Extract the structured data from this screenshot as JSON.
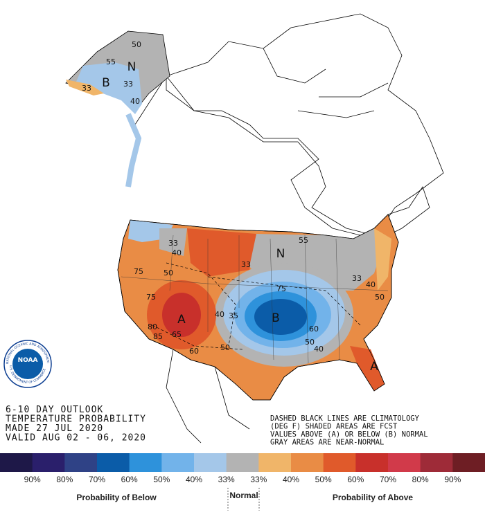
{
  "outlook": {
    "lines": [
      "6-10 DAY OUTLOOK",
      "TEMPERATURE PROBABILITY",
      "MADE   27 JUL 2020",
      "VALID  AUG 02 - 06, 2020"
    ]
  },
  "note": {
    "lines": [
      "DASHED BLACK LINES ARE CLIMATOLOGY",
      "(DEG F) SHADED AREAS ARE FCST",
      "VALUES ABOVE (A) OR BELOW (B) NORMAL",
      "GRAY AREAS ARE NEAR-NORMAL"
    ]
  },
  "logo": {
    "name": "NOAA",
    "ring_top": "NATIONAL OCEANIC AND ATMOSPHERIC ADMINISTRATION",
    "ring_bottom": "U.S. DEPARTMENT OF COMMERCE"
  },
  "map_labels": [
    "55",
    "50",
    "N",
    "B",
    "33",
    "33",
    "40",
    "33",
    "40",
    "75",
    "50",
    "75",
    "A",
    "80",
    "65",
    "85",
    "60",
    "50",
    "40",
    "35",
    "33",
    "N",
    "55",
    "75",
    "B",
    "60",
    "50",
    "40",
    "33",
    "40",
    "50",
    "A"
  ],
  "legend": {
    "colors": [
      "#1e1848",
      "#2a1f6b",
      "#2f4286",
      "#0b5ca8",
      "#2e92db",
      "#72b3ea",
      "#a4c7e9",
      "#b3b3b3",
      "#f0b569",
      "#e98c45",
      "#e05a2b",
      "#c8302b",
      "#d13a4a",
      "#9e2b38",
      "#6e1e24"
    ],
    "labels": [
      "90%",
      "80%",
      "70%",
      "60%",
      "50%",
      "40%",
      "33%",
      "33%",
      "40%",
      "50%",
      "60%",
      "70%",
      "80%",
      "90%"
    ],
    "below": "Probability of Below",
    "normal": "Normal",
    "above": "Probability of Above"
  }
}
